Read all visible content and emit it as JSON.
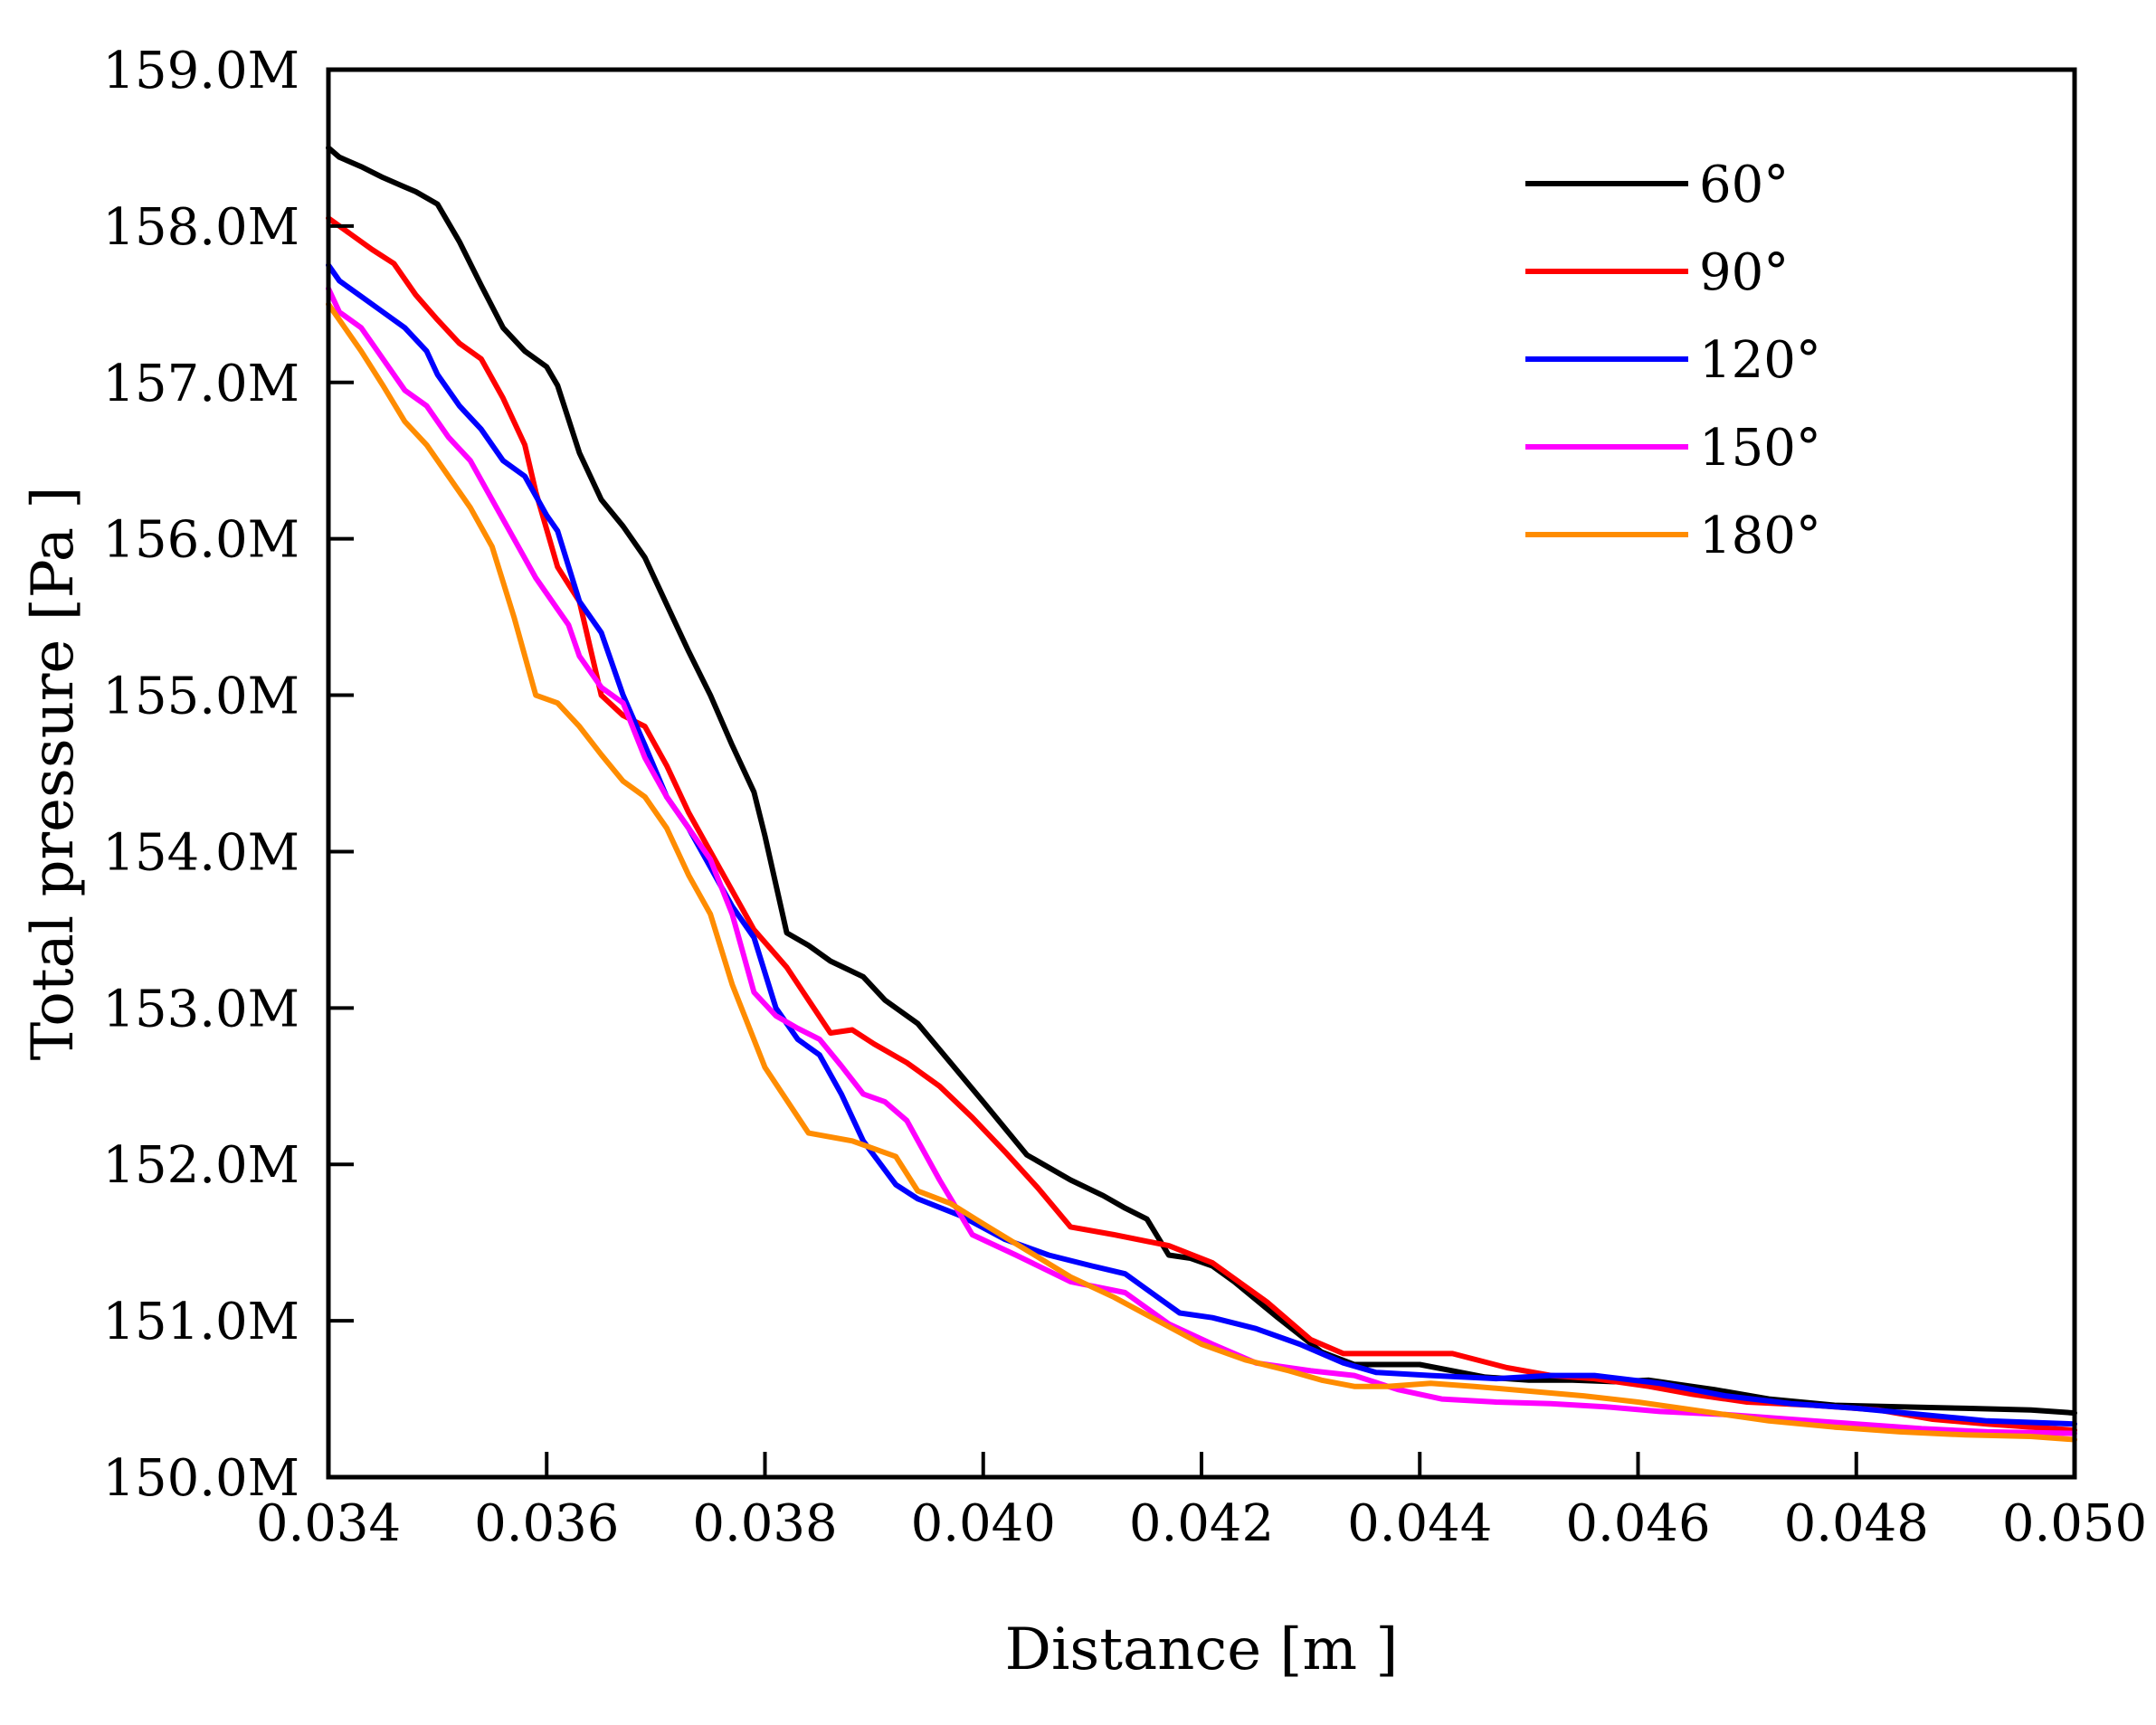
{
  "chart_data": {
    "type": "line",
    "title": "",
    "xlabel": "Distance [m ]",
    "ylabel": "Total pressure [Pa ]",
    "xlim": [
      0.034,
      0.05
    ],
    "ylim": [
      150000000,
      159000000
    ],
    "x_ticks": [
      {
        "value": 0.034,
        "label": "0.034"
      },
      {
        "value": 0.036,
        "label": "0.036"
      },
      {
        "value": 0.038,
        "label": "0.038"
      },
      {
        "value": 0.04,
        "label": "0.040"
      },
      {
        "value": 0.042,
        "label": "0.042"
      },
      {
        "value": 0.044,
        "label": "0.044"
      },
      {
        "value": 0.046,
        "label": "0.046"
      },
      {
        "value": 0.048,
        "label": "0.048"
      },
      {
        "value": 0.05,
        "label": "0.050"
      }
    ],
    "y_ticks": [
      {
        "value": 150000000,
        "label": "150.0M"
      },
      {
        "value": 151000000,
        "label": "151.0M"
      },
      {
        "value": 152000000,
        "label": "152.0M"
      },
      {
        "value": 153000000,
        "label": "153.0M"
      },
      {
        "value": 154000000,
        "label": "154.0M"
      },
      {
        "value": 155000000,
        "label": "155.0M"
      },
      {
        "value": 156000000,
        "label": "156.0M"
      },
      {
        "value": 157000000,
        "label": "157.0M"
      },
      {
        "value": 158000000,
        "label": "158.0M"
      },
      {
        "value": 159000000,
        "label": "159.0M"
      }
    ],
    "legend_position": "top-right",
    "grid": false,
    "series": [
      {
        "name": "60°",
        "color": "#000000",
        "x": [
          0.034,
          0.0341,
          0.0343,
          0.0345,
          0.0347,
          0.0348,
          0.035,
          0.0352,
          0.0354,
          0.0356,
          0.0358,
          0.036,
          0.0361,
          0.0363,
          0.0365,
          0.0367,
          0.0369,
          0.0371,
          0.0373,
          0.0375,
          0.0377,
          0.0379,
          0.038,
          0.0382,
          0.0384,
          0.0386,
          0.0389,
          0.0391,
          0.0394,
          0.0397,
          0.04,
          0.0404,
          0.0408,
          0.0411,
          0.0413,
          0.0415,
          0.0417,
          0.0419,
          0.0421,
          0.0423,
          0.0427,
          0.0431,
          0.0434,
          0.0437,
          0.044,
          0.0443,
          0.0446,
          0.045,
          0.0454,
          0.0458,
          0.0461,
          0.0463,
          0.0467,
          0.0472,
          0.0478,
          0.0484,
          0.049,
          0.0496,
          0.05
        ],
        "y": [
          158500000,
          158440000,
          158380000,
          158310000,
          158250000,
          158220000,
          158140000,
          157900000,
          157620000,
          157350000,
          157200000,
          157100000,
          156980000,
          156550000,
          156250000,
          156080000,
          155880000,
          155580000,
          155280000,
          155000000,
          154680000,
          154380000,
          154100000,
          153480000,
          153400000,
          153300000,
          153200000,
          153050000,
          152900000,
          152650000,
          152400000,
          152060000,
          151900000,
          151800000,
          151720000,
          151650000,
          151420000,
          151400000,
          151350000,
          151250000,
          151020000,
          150800000,
          150720000,
          150720000,
          150720000,
          150680000,
          150640000,
          150620000,
          150620000,
          150610000,
          150620000,
          150600000,
          150560000,
          150500000,
          150460000,
          150450000,
          150440000,
          150430000,
          150410000
        ]
      },
      {
        "name": "90°",
        "color": "#ff0000",
        "x": [
          0.034,
          0.0342,
          0.0344,
          0.0346,
          0.0348,
          0.035,
          0.0352,
          0.0354,
          0.0356,
          0.0358,
          0.0359,
          0.0361,
          0.0363,
          0.0365,
          0.0367,
          0.0369,
          0.0371,
          0.0373,
          0.0375,
          0.0377,
          0.0379,
          0.0382,
          0.0384,
          0.0386,
          0.0388,
          0.039,
          0.0393,
          0.0396,
          0.0399,
          0.0402,
          0.0405,
          0.0408,
          0.0412,
          0.0417,
          0.0421,
          0.0426,
          0.043,
          0.0433,
          0.0437,
          0.0443,
          0.0448,
          0.0452,
          0.0456,
          0.0461,
          0.0465,
          0.047,
          0.0476,
          0.0482,
          0.0487,
          0.0492,
          0.05
        ],
        "y": [
          158050000,
          157950000,
          157850000,
          157760000,
          157560000,
          157400000,
          157250000,
          157150000,
          156900000,
          156600000,
          156300000,
          155820000,
          155600000,
          155000000,
          154870000,
          154800000,
          154550000,
          154250000,
          154000000,
          153750000,
          153500000,
          153260000,
          153050000,
          152840000,
          152860000,
          152770000,
          152650000,
          152500000,
          152300000,
          152080000,
          151850000,
          151600000,
          151550000,
          151480000,
          151370000,
          151120000,
          150880000,
          150790000,
          150790000,
          150790000,
          150700000,
          150650000,
          150630000,
          150580000,
          150530000,
          150480000,
          150460000,
          150430000,
          150370000,
          150340000,
          150300000
        ]
      },
      {
        "name": "120°",
        "color": "#0000ff",
        "x": [
          0.034,
          0.0341,
          0.0343,
          0.0345,
          0.0347,
          0.0349,
          0.035,
          0.0352,
          0.0354,
          0.0356,
          0.0358,
          0.036,
          0.0361,
          0.0363,
          0.0365,
          0.0367,
          0.0369,
          0.0371,
          0.0373,
          0.0375,
          0.0377,
          0.0379,
          0.0381,
          0.0383,
          0.0385,
          0.0387,
          0.0389,
          0.0392,
          0.0394,
          0.0398,
          0.0402,
          0.0406,
          0.041,
          0.0413,
          0.0416,
          0.0418,
          0.0421,
          0.0425,
          0.0429,
          0.0433,
          0.0436,
          0.0441,
          0.0447,
          0.0452,
          0.0456,
          0.0462,
          0.0468,
          0.0474,
          0.048,
          0.0486,
          0.0492,
          0.05
        ],
        "y": [
          157750000,
          157650000,
          157550000,
          157450000,
          157350000,
          157200000,
          157050000,
          156850000,
          156700000,
          156500000,
          156400000,
          156150000,
          156050000,
          155600000,
          155400000,
          155000000,
          154680000,
          154350000,
          154150000,
          153900000,
          153650000,
          153450000,
          153000000,
          152800000,
          152700000,
          152450000,
          152150000,
          151870000,
          151780000,
          151670000,
          151520000,
          151420000,
          151350000,
          151300000,
          151150000,
          151050000,
          151020000,
          150950000,
          150850000,
          150730000,
          150670000,
          150650000,
          150630000,
          150650000,
          150650000,
          150600000,
          150520000,
          150470000,
          150440000,
          150400000,
          150360000,
          150340000
        ]
      },
      {
        "name": "150°",
        "color": "#ff00ff",
        "x": [
          0.034,
          0.0341,
          0.0343,
          0.0345,
          0.0347,
          0.0349,
          0.0351,
          0.0353,
          0.0355,
          0.0357,
          0.0359,
          0.0361,
          0.0362,
          0.0363,
          0.0365,
          0.0367,
          0.0369,
          0.0371,
          0.0373,
          0.0375,
          0.0377,
          0.0379,
          0.0381,
          0.0383,
          0.0385,
          0.0387,
          0.0389,
          0.0391,
          0.0393,
          0.0396,
          0.0399,
          0.0403,
          0.0408,
          0.0413,
          0.0417,
          0.0421,
          0.0425,
          0.043,
          0.0434,
          0.0438,
          0.0442,
          0.0447,
          0.0452,
          0.0457,
          0.0462,
          0.0468,
          0.0474,
          0.048,
          0.0486,
          0.0492,
          0.05
        ],
        "y": [
          157600000,
          157450000,
          157350000,
          157150000,
          156950000,
          156850000,
          156650000,
          156500000,
          156250000,
          156000000,
          155750000,
          155550000,
          155450000,
          155250000,
          155050000,
          154950000,
          154600000,
          154350000,
          154150000,
          153950000,
          153600000,
          153100000,
          152950000,
          152870000,
          152800000,
          152630000,
          152450000,
          152400000,
          152280000,
          151900000,
          151550000,
          151420000,
          151250000,
          151180000,
          150980000,
          150850000,
          150730000,
          150680000,
          150650000,
          150560000,
          150500000,
          150480000,
          150470000,
          150450000,
          150420000,
          150400000,
          150370000,
          150340000,
          150310000,
          150290000,
          150280000
        ]
      },
      {
        "name": "180°",
        "color": "#ff8c00",
        "x": [
          0.034,
          0.0341,
          0.0343,
          0.0345,
          0.0347,
          0.0349,
          0.0351,
          0.0353,
          0.0355,
          0.0357,
          0.0359,
          0.0361,
          0.0363,
          0.0365,
          0.0367,
          0.0369,
          0.0371,
          0.0373,
          0.0375,
          0.0377,
          0.038,
          0.0384,
          0.0388,
          0.0392,
          0.0394,
          0.0397,
          0.04,
          0.0404,
          0.0408,
          0.0412,
          0.0416,
          0.042,
          0.0424,
          0.0428,
          0.0431,
          0.0434,
          0.0437,
          0.0441,
          0.0445,
          0.045,
          0.0455,
          0.046,
          0.0466,
          0.0472,
          0.0478,
          0.0484,
          0.049,
          0.0496,
          0.05
        ],
        "y": [
          157500000,
          157400000,
          157200000,
          156980000,
          156750000,
          156600000,
          156400000,
          156200000,
          155950000,
          155500000,
          155000000,
          154950000,
          154800000,
          154620000,
          154450000,
          154350000,
          154150000,
          153850000,
          153600000,
          153150000,
          152620000,
          152200000,
          152150000,
          152050000,
          151830000,
          151750000,
          151620000,
          151450000,
          151280000,
          151150000,
          151000000,
          150850000,
          150750000,
          150680000,
          150620000,
          150580000,
          150580000,
          150600000,
          150580000,
          150550000,
          150520000,
          150480000,
          150420000,
          150360000,
          150320000,
          150290000,
          150270000,
          150260000,
          150240000
        ]
      }
    ]
  }
}
